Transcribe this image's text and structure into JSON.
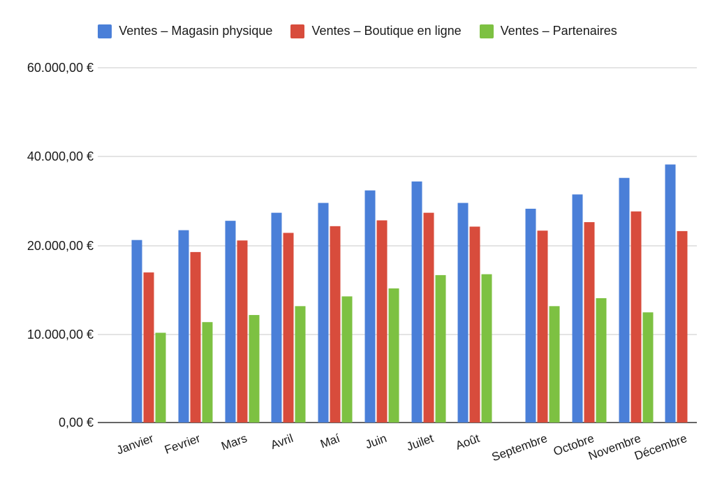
{
  "chart_data": {
    "type": "bar",
    "title": "",
    "xlabel": "",
    "ylabel": "",
    "categories": [
      "Janvier",
      "Fevrier",
      "Mars",
      "Avril",
      "Maí",
      "Juin",
      "Juilet",
      "Août",
      "Septembre",
      "Octobre",
      "Novembre",
      "Décembre"
    ],
    "y_ticks": [
      {
        "value": 0,
        "label": "0,00 €"
      },
      {
        "value": 10000,
        "label": "10.000,00 €"
      },
      {
        "value": 20000,
        "label": "20.000,00 €"
      },
      {
        "value": 40000,
        "label": "40.000,00 €"
      },
      {
        "value": 60000,
        "label": "60.000,00 €"
      }
    ],
    "ylim": [
      0,
      60000
    ],
    "grid": true,
    "legend_position": "top",
    "series": [
      {
        "name": "Ventes – Magasin physique",
        "color": "#4a7fd8",
        "values": [
          21300,
          23500,
          25600,
          27400,
          29600,
          32400,
          34400,
          29600,
          28300,
          31500,
          35200,
          38200
        ]
      },
      {
        "name": "Ventes – Boutique en ligne",
        "color": "#d84c3c",
        "values": [
          17000,
          19300,
          21200,
          22900,
          24400,
          25700,
          27400,
          24300,
          23400,
          25300,
          27700,
          23300
        ]
      },
      {
        "name": "Ventes – Partenaires",
        "color": "#7dc142",
        "values": [
          10200,
          11400,
          12200,
          13200,
          14300,
          15200,
          16700,
          16800,
          13200,
          14100,
          12500,
          null
        ]
      }
    ]
  }
}
